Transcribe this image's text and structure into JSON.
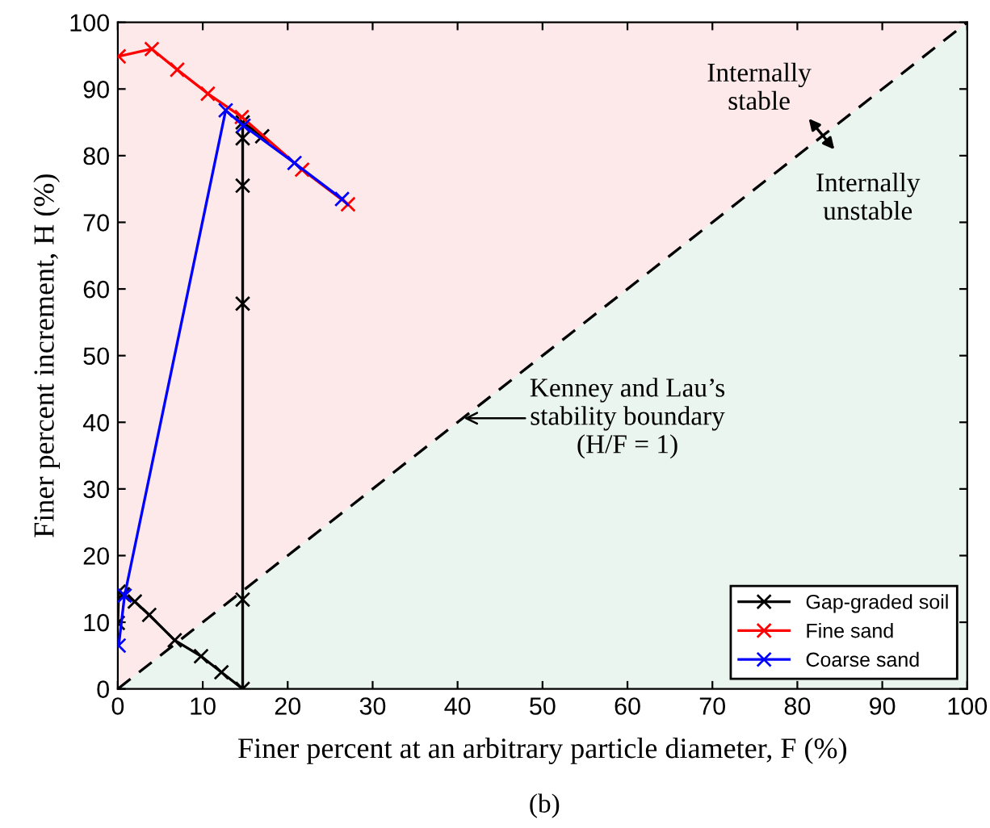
{
  "chart_data": {
    "type": "line",
    "xlabel": "Finer percent at an arbitrary particle diameter, F (%)",
    "ylabel": "Finer percent increment, H (%)",
    "xlim": [
      0,
      100
    ],
    "ylim": [
      0,
      100
    ],
    "xticks": [
      0,
      10,
      20,
      30,
      40,
      50,
      60,
      70,
      80,
      90,
      100
    ],
    "yticks": [
      0,
      10,
      20,
      30,
      40,
      50,
      60,
      70,
      80,
      90,
      100
    ],
    "grid": false,
    "legend": "bottom right",
    "marker": "cross",
    "series": [
      {
        "type": "line",
        "x": [
          0,
          100
        ],
        "values": [
          0,
          100
        ],
        "color": "#000000",
        "line_style": "dashed",
        "marker": "none"
      },
      {
        "name": "Gap-graded soil",
        "color": "#000000",
        "x": [
          0,
          0.1,
          0.6,
          2.0,
          3.7,
          6.7,
          9.8,
          12.2,
          14.7,
          14.7,
          14.7,
          14.7,
          14.7,
          14.7,
          17.0
        ],
        "values": [
          9.9,
          14.6,
          14.2,
          13.1,
          11.1,
          7.3,
          4.9,
          2.5,
          0,
          13.4,
          57.8,
          75.5,
          82.6,
          85.0,
          82.9
        ]
      },
      {
        "name": "Fine sand",
        "color": "#ff0000",
        "x": [
          0.1,
          4.0,
          7.0,
          10.6,
          14.6,
          21.7,
          27.1
        ],
        "values": [
          94.9,
          96.0,
          92.9,
          89.3,
          85.8,
          77.9,
          72.7
        ]
      },
      {
        "name": "Coarse sand",
        "color": "#0000ff",
        "x": [
          0.1,
          0.8,
          12.7,
          14.8,
          20.8,
          26.4
        ],
        "values": [
          6.5,
          14.0,
          86.8,
          84.5,
          78.9,
          73.5
        ]
      }
    ],
    "annotations": [
      "Internally\nstable",
      "Internally\nunstable",
      {
        "text": "Kenney and Lau’s\nstability boundary\n(H/F = 1)",
        "x": 40.5,
        "y": 40.6
      },
      "(b)"
    ]
  }
}
